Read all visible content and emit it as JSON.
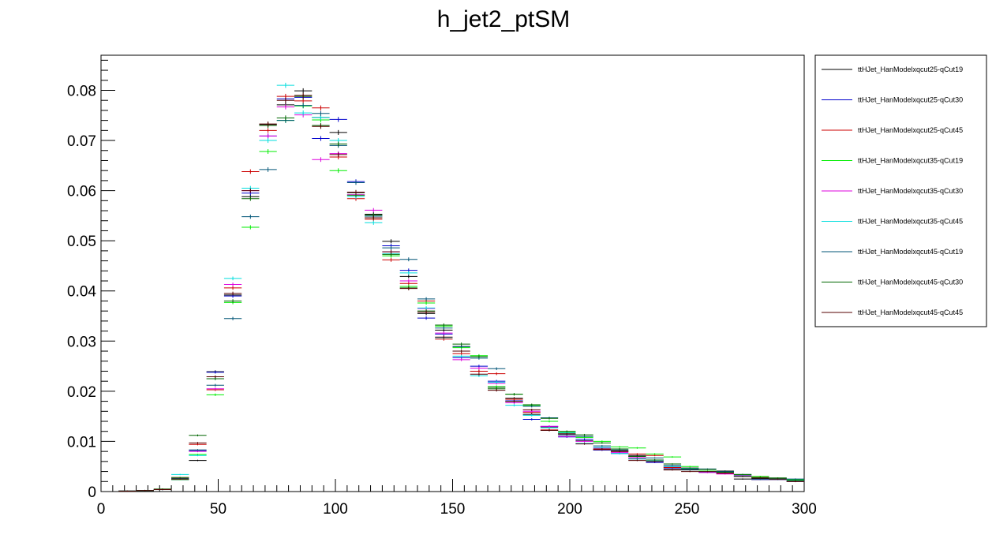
{
  "chart_data": {
    "type": "scatter",
    "title": "h_jet2_ptSM",
    "xlabel": "",
    "ylabel": "",
    "xlim": [
      0,
      300
    ],
    "ylim": [
      0,
      0.087
    ],
    "x_ticks": [
      "0",
      "50",
      "100",
      "150",
      "200",
      "250",
      "300"
    ],
    "y_ticks": [
      "0",
      "0.01",
      "0.02",
      "0.03",
      "0.04",
      "0.05",
      "0.06",
      "0.07",
      "0.08"
    ],
    "legend_position": "right",
    "bin_width": 7.5,
    "x": [
      3.75,
      11.25,
      18.75,
      26.25,
      33.75,
      41.25,
      48.75,
      56.25,
      63.75,
      71.25,
      78.75,
      86.25,
      93.75,
      101.25,
      108.75,
      116.25,
      123.75,
      131.25,
      138.75,
      146.25,
      153.75,
      161.25,
      168.75,
      176.25,
      183.75,
      191.25,
      198.75,
      206.25,
      213.75,
      221.25,
      228.75,
      236.25,
      243.75,
      251.25,
      258.75,
      266.25,
      273.75,
      281.25,
      288.75,
      296.25
    ],
    "series": [
      {
        "name": "ttHJet_HanModelxqcut25-qCut19",
        "color": "#000000",
        "values": [
          0,
          0.0001,
          0.0002,
          0.0004,
          0.0024,
          0.0062,
          0.0239,
          0.0392,
          0.0588,
          0.0732,
          0.0771,
          0.0799,
          0.0746,
          0.0716,
          0.0596,
          0.0553,
          0.0499,
          0.0429,
          0.0355,
          0.0322,
          0.0289,
          0.024,
          0.0208,
          0.0186,
          0.0154,
          0.0129,
          0.0115,
          0.0101,
          0.0083,
          0.0081,
          0.0072,
          0.0063,
          0.0044,
          0.0043,
          0.004,
          0.0041,
          0.0025,
          0.0026,
          0.0027,
          0.002
        ]
      },
      {
        "name": "ttHJet_HanModelxqcut25-qCut30",
        "color": "#0000cc",
        "values": [
          0,
          0.0001,
          0.0002,
          0.0004,
          0.0024,
          0.0082,
          0.0238,
          0.039,
          0.0595,
          0.0709,
          0.0783,
          0.0786,
          0.0704,
          0.0742,
          0.0618,
          0.0549,
          0.049,
          0.0441,
          0.0346,
          0.0314,
          0.0267,
          0.025,
          0.022,
          0.0181,
          0.0144,
          0.013,
          0.0109,
          0.0104,
          0.0083,
          0.0076,
          0.007,
          0.0058,
          0.0047,
          0.0045,
          0.0039,
          0.004,
          0.0034,
          0.0024,
          0.0026,
          0.0024
        ]
      },
      {
        "name": "ttHJet_HanModelxqcut25-qCut45",
        "color": "#cc0000",
        "values": [
          0,
          0.0001,
          0.0002,
          0.0005,
          0.0028,
          0.0094,
          0.0203,
          0.0406,
          0.0638,
          0.072,
          0.0788,
          0.0779,
          0.0765,
          0.0667,
          0.0584,
          0.0543,
          0.0462,
          0.0415,
          0.038,
          0.0304,
          0.0275,
          0.024,
          0.0235,
          0.0184,
          0.0158,
          0.0123,
          0.0115,
          0.0096,
          0.0084,
          0.008,
          0.0075,
          0.0072,
          0.0048,
          0.0045,
          0.004,
          0.0036,
          0.003,
          0.003,
          0.0024,
          0.0021
        ]
      },
      {
        "name": "ttHJet_HanModelxqcut35-qCut19",
        "color": "#00ee00",
        "values": [
          0,
          0.0001,
          0.0002,
          0.0004,
          0.0024,
          0.0074,
          0.0193,
          0.0377,
          0.0527,
          0.0678,
          0.074,
          0.0769,
          0.0741,
          0.064,
          0.0591,
          0.0546,
          0.047,
          0.0409,
          0.0376,
          0.033,
          0.0287,
          0.0271,
          0.0209,
          0.0194,
          0.0172,
          0.014,
          0.0118,
          0.0108,
          0.01,
          0.0089,
          0.0087,
          0.0075,
          0.0069,
          0.005,
          0.0041,
          0.0039,
          0.0033,
          0.003,
          0.0027,
          0.0024
        ]
      },
      {
        "name": "ttHJet_HanModelxqcut35-qCut30",
        "color": "#dd00dd",
        "values": [
          0,
          0.0001,
          0.0002,
          0.0004,
          0.0025,
          0.008,
          0.0205,
          0.0413,
          0.06,
          0.0709,
          0.0767,
          0.0751,
          0.0662,
          0.0674,
          0.0592,
          0.0561,
          0.0478,
          0.042,
          0.0365,
          0.0316,
          0.0263,
          0.0246,
          0.0216,
          0.0177,
          0.016,
          0.013,
          0.011,
          0.01,
          0.0087,
          0.0078,
          0.0068,
          0.006,
          0.005,
          0.0047,
          0.0038,
          0.0035,
          0.0032,
          0.0024,
          0.0024,
          0.002
        ]
      },
      {
        "name": "ttHJet_HanModelxqcut35-qCut45",
        "color": "#00dddd",
        "values": [
          0,
          0.0001,
          0.0002,
          0.0004,
          0.0034,
          0.0072,
          0.0225,
          0.0425,
          0.0605,
          0.07,
          0.081,
          0.0755,
          0.0746,
          0.07,
          0.0588,
          0.0536,
          0.0474,
          0.0436,
          0.0366,
          0.0307,
          0.027,
          0.0231,
          0.0218,
          0.0172,
          0.0152,
          0.0127,
          0.0117,
          0.0096,
          0.0088,
          0.0076,
          0.0065,
          0.0061,
          0.005,
          0.0046,
          0.004,
          0.0039,
          0.0031,
          0.0027,
          0.0025,
          0.0021
        ]
      },
      {
        "name": "ttHJet_HanModelxqcut45-qCut19",
        "color": "#005577",
        "values": [
          0,
          0.0001,
          0.0002,
          0.0004,
          0.0026,
          0.0083,
          0.0212,
          0.0345,
          0.0548,
          0.0642,
          0.074,
          0.077,
          0.0754,
          0.069,
          0.0616,
          0.0549,
          0.0486,
          0.0463,
          0.0384,
          0.0326,
          0.0289,
          0.0266,
          0.0245,
          0.018,
          0.017,
          0.0147,
          0.0113,
          0.011,
          0.0091,
          0.0083,
          0.0065,
          0.0067,
          0.0052,
          0.0044,
          0.0045,
          0.004,
          0.003,
          0.0024,
          0.0024,
          0.0025
        ]
      },
      {
        "name": "ttHJet_HanModelxqcut45-qCut30",
        "color": "#006600",
        "values": [
          0,
          0.0001,
          0.0002,
          0.0005,
          0.0028,
          0.0112,
          0.0225,
          0.038,
          0.0584,
          0.073,
          0.0745,
          0.0788,
          0.073,
          0.0693,
          0.0591,
          0.0551,
          0.0473,
          0.0406,
          0.036,
          0.0332,
          0.0294,
          0.0269,
          0.0205,
          0.0194,
          0.0173,
          0.0146,
          0.012,
          0.0113,
          0.0097,
          0.0085,
          0.007,
          0.0063,
          0.0055,
          0.0047,
          0.0044,
          0.0039,
          0.0034,
          0.0028,
          0.0027,
          0.0022
        ]
      },
      {
        "name": "ttHJet_HanModelxqcut45-qCut45",
        "color": "#550000",
        "values": [
          0,
          0.0001,
          0.0002,
          0.0004,
          0.0025,
          0.0097,
          0.0229,
          0.0395,
          0.06,
          0.0733,
          0.078,
          0.079,
          0.0728,
          0.0672,
          0.0597,
          0.0546,
          0.0478,
          0.0405,
          0.0358,
          0.0308,
          0.028,
          0.0234,
          0.0202,
          0.018,
          0.0163,
          0.0122,
          0.0115,
          0.0095,
          0.0085,
          0.008,
          0.0062,
          0.006,
          0.0043,
          0.004,
          0.004,
          0.0037,
          0.003,
          0.0027,
          0.0025,
          0.002
        ]
      }
    ]
  }
}
